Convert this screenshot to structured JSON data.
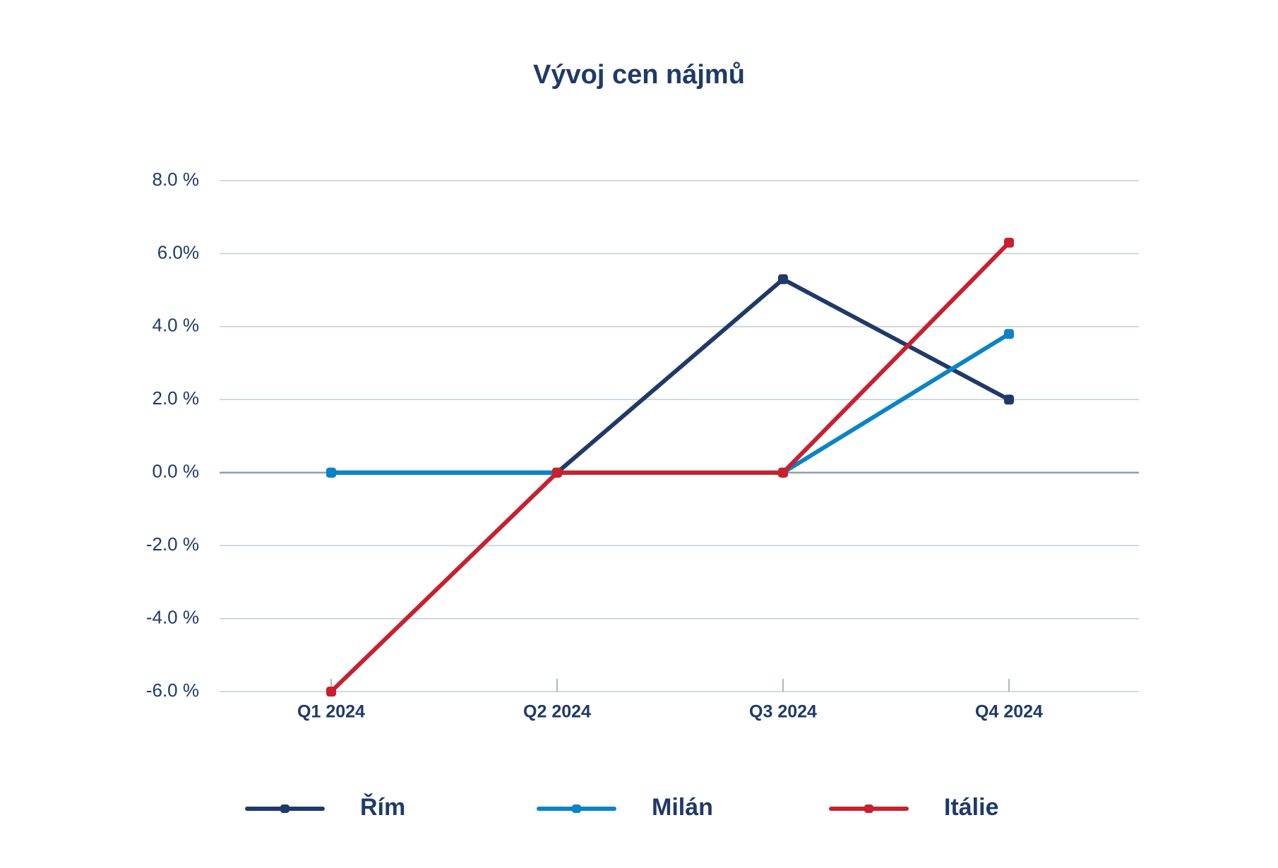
{
  "chart_data": {
    "type": "line",
    "title": "Vývoj cen nájmů",
    "categories": [
      "Q1 2024",
      "Q2 2024",
      "Q3 2024",
      "Q4 2024"
    ],
    "series": [
      {
        "name": "Řím",
        "color": "#1f3a68",
        "values": [
          0,
          0,
          5.3,
          2.0
        ]
      },
      {
        "name": "Milán",
        "color": "#0a84c6",
        "values": [
          0,
          0,
          0,
          3.8
        ]
      },
      {
        "name": "Itálie",
        "color": "#c8202f",
        "values": [
          -6.0,
          0,
          0,
          6.3
        ]
      }
    ],
    "ylim": [
      -6,
      8
    ],
    "yticks": [
      {
        "value": -6,
        "label": "-6.0 %"
      },
      {
        "value": -4,
        "label": "-4.0 %"
      },
      {
        "value": -2,
        "label": "-2.0 %"
      },
      {
        "value": 0,
        "label": "0.0 %"
      },
      {
        "value": 2,
        "label": "2.0 %"
      },
      {
        "value": 4,
        "label": "4.0 %"
      },
      {
        "value": 6,
        "label": "6.0%"
      },
      {
        "value": 8,
        "label": "8.0 %"
      }
    ],
    "grid": true,
    "legend": "bottom"
  }
}
